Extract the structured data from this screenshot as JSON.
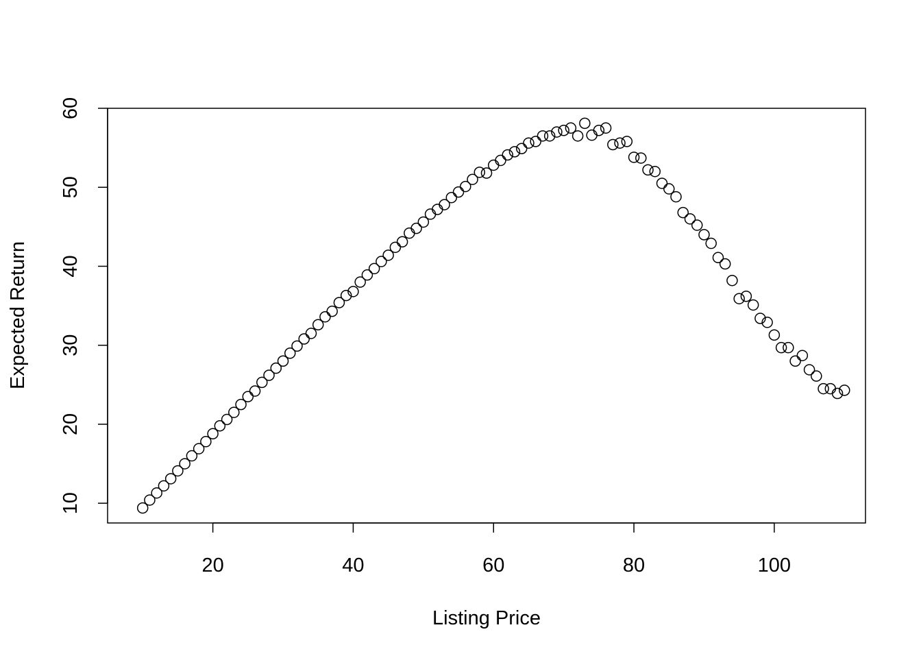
{
  "chart_data": {
    "type": "scatter",
    "title": "",
    "xlabel": "Listing Price",
    "ylabel": "Expected Return",
    "xlim": [
      5,
      113
    ],
    "ylim": [
      7.5,
      60
    ],
    "xticks": [
      20,
      40,
      60,
      80,
      100
    ],
    "yticks": [
      10,
      20,
      30,
      40,
      50,
      60
    ],
    "marker": "open-circle",
    "grid": false,
    "x": [
      10,
      11,
      12,
      13,
      14,
      15,
      16,
      17,
      18,
      19,
      20,
      21,
      22,
      23,
      24,
      25,
      26,
      27,
      28,
      29,
      30,
      31,
      32,
      33,
      34,
      35,
      36,
      37,
      38,
      39,
      40,
      41,
      42,
      43,
      44,
      45,
      46,
      47,
      48,
      49,
      50,
      51,
      52,
      53,
      54,
      55,
      56,
      57,
      58,
      59,
      60,
      61,
      62,
      63,
      64,
      65,
      66,
      67,
      68,
      69,
      70,
      71,
      72,
      73,
      74,
      75,
      76,
      77,
      78,
      79,
      80,
      81,
      82,
      83,
      84,
      85,
      86,
      87,
      88,
      89,
      90,
      91,
      92,
      93,
      94,
      95,
      96,
      97,
      98,
      99,
      100,
      101,
      102,
      103,
      104,
      105,
      106,
      107,
      108,
      109,
      110
    ],
    "y": [
      9.4,
      10.4,
      11.3,
      12.2,
      13.1,
      14.1,
      15.0,
      16.0,
      16.9,
      17.8,
      18.8,
      19.8,
      20.6,
      21.5,
      22.5,
      23.5,
      24.2,
      25.3,
      26.2,
      27.1,
      28.0,
      29.0,
      29.9,
      30.8,
      31.5,
      32.6,
      33.6,
      34.3,
      35.4,
      36.3,
      36.8,
      38.0,
      38.9,
      39.7,
      40.6,
      41.4,
      42.4,
      43.1,
      44.2,
      44.8,
      45.6,
      46.6,
      47.2,
      47.8,
      48.7,
      49.4,
      50.1,
      51.0,
      51.9,
      51.8,
      52.8,
      53.4,
      54.1,
      54.5,
      54.9,
      55.6,
      55.8,
      56.5,
      56.5,
      57.0,
      57.2,
      57.5,
      56.5,
      58.1,
      56.6,
      57.2,
      57.5,
      55.4,
      55.6,
      55.8,
      53.8,
      53.7,
      52.2,
      52.0,
      50.5,
      49.8,
      48.8,
      46.8,
      46.0,
      45.2,
      44.0,
      42.9,
      41.1,
      40.3,
      38.2,
      35.9,
      36.2,
      35.1,
      33.4,
      32.9,
      31.3,
      29.7,
      29.7,
      28.0,
      28.7,
      26.9,
      26.1,
      24.5,
      24.5,
      23.9,
      24.3
    ]
  }
}
